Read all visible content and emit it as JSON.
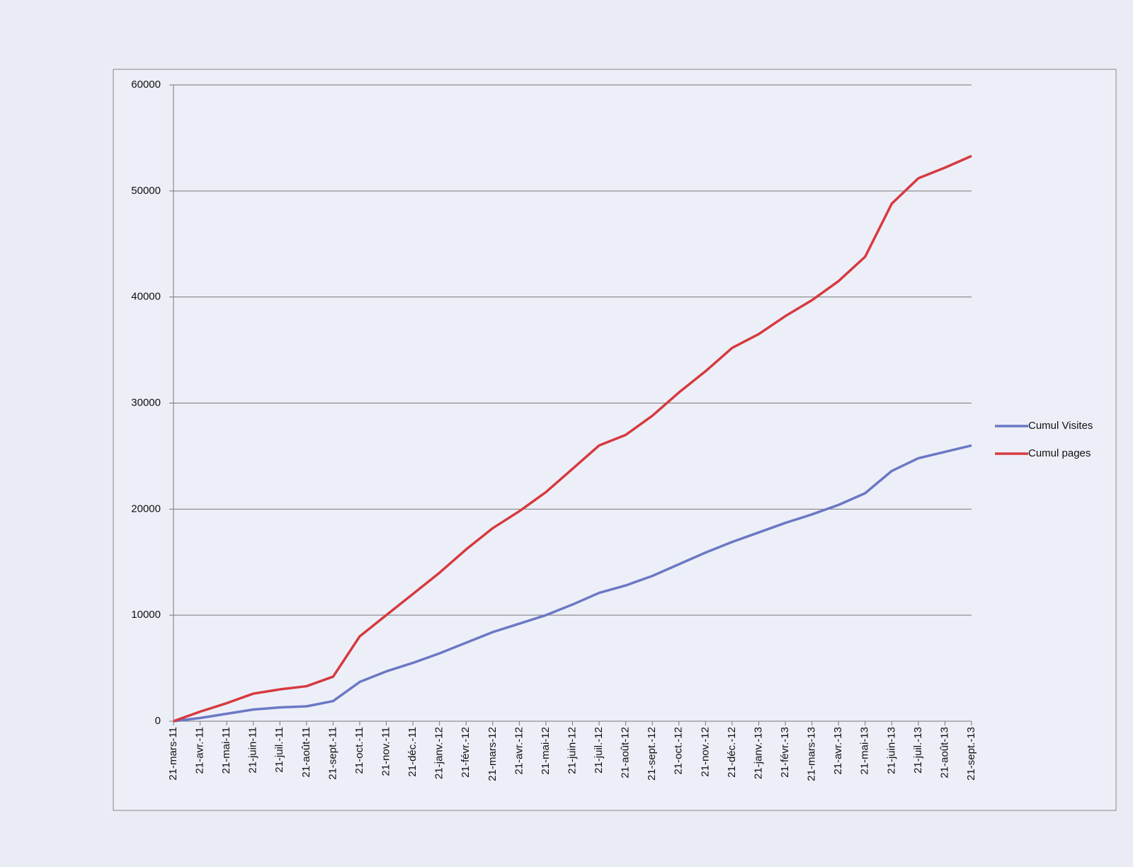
{
  "chart_data": {
    "type": "line",
    "categories": [
      "21-mars-11",
      "21-avr.-11",
      "21-mai-11",
      "21-juin-11",
      "21-juil.-11",
      "21-août-11",
      "21-sept.-11",
      "21-oct.-11",
      "21-nov.-11",
      "21-déc.-11",
      "21-janv.-12",
      "21-févr.-12",
      "21-mars-12",
      "21-avr.-12",
      "21-mai-12",
      "21-juin-12",
      "21-juil.-12",
      "21-août-12",
      "21-sept.-12",
      "21-oct.-12",
      "21-nov.-12",
      "21-déc.-12",
      "21-janv.-13",
      "21-févr.-13",
      "21-mars-13",
      "21-avr.-13",
      "21-mai-13",
      "21-juin-13",
      "21-juil.-13",
      "21-août-13",
      "21-sept.-13"
    ],
    "series": [
      {
        "name": "Cumul Visites",
        "color": "#6b78c4",
        "values": [
          0,
          300,
          700,
          1100,
          1300,
          1400,
          1900,
          3700,
          4700,
          5500,
          6400,
          7400,
          8400,
          9200,
          10000,
          11000,
          12100,
          12800,
          13700,
          14800,
          15900,
          16900,
          17800,
          18700,
          19500,
          20400,
          21500,
          23600,
          24800,
          25400,
          26000
        ]
      },
      {
        "name": "Cumul pages",
        "color": "#d63a3f",
        "values": [
          0,
          900,
          1700,
          2600,
          3000,
          3300,
          4200,
          8000,
          10000,
          12000,
          14000,
          16200,
          18200,
          19800,
          21600,
          23800,
          26000,
          27000,
          28800,
          31000,
          33000,
          35200,
          36500,
          38200,
          39700,
          41500,
          43800,
          48800,
          51200,
          52200,
          53300
        ]
      }
    ],
    "ylim": [
      0,
      60000
    ],
    "yticks": [
      0,
      10000,
      20000,
      30000,
      40000,
      50000,
      60000
    ],
    "grid": true,
    "legend": "right"
  }
}
